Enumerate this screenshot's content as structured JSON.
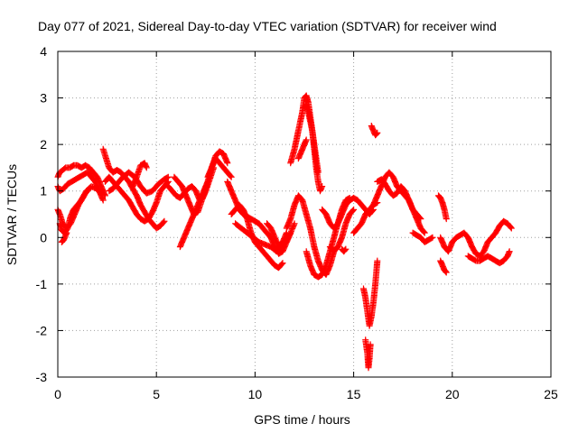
{
  "chart_data": {
    "type": "scatter",
    "title": "Day 077 of 2021, Sidereal Day-to-day VTEC variation (SDTVAR) for receiver wind",
    "xlabel": "GPS time / hours",
    "ylabel": "SDTVAR / TECUs",
    "xlim": [
      0,
      25
    ],
    "ylim": [
      -3,
      4
    ],
    "xticks": [
      0,
      5,
      10,
      15,
      20,
      25
    ],
    "yticks": [
      -3,
      -2,
      -1,
      0,
      1,
      2,
      3,
      4
    ],
    "grid": true,
    "marker": "+",
    "color": "#ff0000",
    "series": [
      {
        "name": "SDTVAR",
        "trace_segments": [
          {
            "x": [
              0.0,
              0.1,
              0.25,
              0.4,
              0.6,
              0.8,
              1.0,
              1.2,
              1.4,
              1.6,
              1.8,
              2.0,
              2.2,
              2.4
            ],
            "y": [
              1.3,
              1.4,
              1.45,
              1.5,
              1.5,
              1.55,
              1.55,
              1.5,
              1.55,
              1.5,
              1.4,
              1.3,
              1.1,
              0.9
            ]
          },
          {
            "x": [
              0.0,
              0.1,
              0.3,
              0.5,
              0.7,
              0.9,
              1.1,
              1.3,
              1.5,
              1.7,
              1.9,
              2.1,
              2.3
            ],
            "y": [
              1.1,
              1.0,
              1.05,
              1.15,
              1.2,
              1.25,
              1.3,
              1.35,
              1.4,
              1.3,
              1.2,
              1.0,
              0.8
            ]
          },
          {
            "x": [
              0.0,
              0.1,
              0.25,
              0.45,
              0.65,
              0.85,
              1.05,
              1.25,
              1.45,
              1.7,
              1.95,
              2.2
            ],
            "y": [
              0.6,
              0.5,
              0.3,
              0.2,
              0.3,
              0.5,
              0.7,
              0.85,
              1.0,
              1.1,
              1.05,
              0.95
            ]
          },
          {
            "x": [
              0.1,
              0.2,
              0.35,
              0.5,
              0.65,
              0.8,
              1.0,
              1.2,
              1.4,
              1.6
            ],
            "y": [
              0.3,
              0.15,
              0.1,
              0.2,
              0.45,
              0.6,
              0.7,
              0.8,
              0.95,
              1.05
            ]
          },
          {
            "x": [
              0.2,
              0.3,
              0.4,
              0.45
            ],
            "y": [
              -0.1,
              -0.05,
              0.05,
              0.1
            ]
          },
          {
            "x": [
              2.3,
              2.45,
              2.6,
              2.8,
              3.0,
              3.2,
              3.4,
              3.6,
              3.8,
              4.0,
              4.2,
              4.4,
              4.6,
              4.8,
              5.0,
              5.2,
              5.4
            ],
            "y": [
              1.9,
              1.7,
              1.5,
              1.4,
              1.45,
              1.4,
              1.3,
              1.2,
              1.05,
              0.9,
              0.7,
              0.55,
              0.4,
              0.3,
              0.2,
              0.25,
              0.35
            ]
          },
          {
            "x": [
              2.4,
              2.6,
              2.8,
              3.0,
              3.2,
              3.4,
              3.6,
              3.8,
              4.0,
              4.2,
              4.4,
              4.6,
              4.8,
              5.0,
              5.2,
              5.4,
              5.6
            ],
            "y": [
              1.2,
              1.3,
              1.2,
              1.1,
              1.0,
              0.9,
              0.8,
              0.65,
              0.5,
              0.4,
              0.35,
              0.4,
              0.55,
              0.75,
              1.0,
              1.1,
              1.2
            ]
          },
          {
            "x": [
              2.6,
              2.8,
              3.0,
              3.3,
              3.6,
              3.9,
              4.2,
              4.5,
              4.8,
              5.1,
              5.4,
              5.6
            ],
            "y": [
              1.0,
              1.05,
              1.15,
              1.3,
              1.4,
              1.3,
              1.1,
              0.95,
              1.0,
              1.15,
              1.25,
              1.3
            ]
          },
          {
            "x": [
              3.8,
              4.0,
              4.2,
              4.4,
              4.5
            ],
            "y": [
              1.1,
              1.3,
              1.55,
              1.6,
              1.5
            ]
          },
          {
            "x": [
              5.6,
              5.8,
              6.0,
              6.2,
              6.4,
              6.6,
              6.8,
              7.0,
              7.2,
              7.4,
              7.6,
              7.8,
              8.0,
              8.2,
              8.4,
              8.6
            ],
            "y": [
              1.1,
              1.0,
              0.9,
              0.85,
              0.95,
              1.05,
              1.1,
              1.0,
              0.8,
              0.9,
              1.2,
              1.5,
              1.75,
              1.85,
              1.8,
              1.6
            ]
          },
          {
            "x": [
              5.9,
              6.1,
              6.3,
              6.5,
              6.7,
              6.9,
              7.1,
              7.3,
              7.5,
              7.7,
              7.9
            ],
            "y": [
              1.3,
              1.2,
              1.1,
              0.9,
              0.7,
              0.5,
              0.55,
              0.8,
              1.0,
              1.25,
              1.5
            ]
          },
          {
            "x": [
              6.2,
              6.3,
              6.4,
              6.5,
              6.6,
              6.8,
              7.0,
              7.2,
              7.4,
              7.6
            ],
            "y": [
              -0.2,
              -0.1,
              0.0,
              0.1,
              0.2,
              0.4,
              0.6,
              0.8,
              1.0,
              1.2
            ]
          },
          {
            "x": [
              7.6,
              7.8,
              8.0,
              8.2,
              8.4,
              8.6,
              8.8
            ],
            "y": [
              1.3,
              1.5,
              1.7,
              1.6,
              1.5,
              1.4,
              1.3
            ]
          },
          {
            "x": [
              8.6,
              8.8,
              9.0,
              9.2,
              9.4,
              9.6,
              9.8,
              10.0,
              10.2,
              10.4,
              10.6,
              10.8,
              11.0,
              11.2,
              11.4,
              11.6,
              11.8
            ],
            "y": [
              1.2,
              1.0,
              0.8,
              0.6,
              0.5,
              0.45,
              0.4,
              0.35,
              0.3,
              0.2,
              0.1,
              0.0,
              -0.2,
              -0.35,
              -0.3,
              -0.1,
              0.1
            ]
          },
          {
            "x": [
              8.8,
              9.0,
              9.2,
              9.4,
              9.6,
              9.8,
              10.0,
              10.2,
              10.4,
              10.6,
              10.8,
              11.0,
              11.2,
              11.4
            ],
            "y": [
              0.5,
              0.6,
              0.7,
              0.6,
              0.4,
              0.1,
              -0.1,
              -0.2,
              -0.3,
              -0.4,
              -0.5,
              -0.6,
              -0.65,
              -0.55
            ]
          },
          {
            "x": [
              9.0,
              9.3,
              9.6,
              9.9,
              10.2,
              10.5,
              10.8,
              11.1,
              11.4,
              11.7,
              12.0
            ],
            "y": [
              0.3,
              0.2,
              0.1,
              0.0,
              -0.1,
              -0.15,
              -0.2,
              -0.3,
              -0.2,
              0.0,
              0.3
            ]
          },
          {
            "x": [
              10.6,
              10.8,
              11.0,
              11.2,
              11.4,
              11.6
            ],
            "y": [
              0.3,
              0.2,
              0.0,
              -0.2,
              -0.1,
              0.1
            ]
          },
          {
            "x": [
              11.8,
              12.0,
              12.2,
              12.4,
              12.5,
              12.6,
              12.7,
              12.8,
              12.9,
              13.0,
              13.1,
              13.2,
              13.3,
              13.4
            ],
            "y": [
              1.6,
              1.9,
              2.3,
              2.7,
              3.0,
              3.05,
              2.9,
              2.6,
              2.3,
              1.9,
              1.5,
              1.2,
              1.0,
              1.1
            ]
          },
          {
            "x": [
              12.5,
              12.6,
              12.7,
              12.8,
              12.9,
              13.0,
              13.1,
              13.2
            ],
            "y": [
              2.8,
              2.85,
              2.7,
              2.5,
              2.3,
              2.0,
              1.7,
              1.4
            ]
          },
          {
            "x": [
              12.2,
              12.3,
              12.4,
              12.5,
              12.6
            ],
            "y": [
              1.7,
              1.8,
              1.9,
              2.0,
              2.1
            ]
          },
          {
            "x": [
              11.6,
              11.8,
              12.0,
              12.2,
              12.4,
              12.6,
              12.8,
              13.0,
              13.2,
              13.4,
              13.6,
              13.8,
              14.0
            ],
            "y": [
              0.2,
              0.4,
              0.7,
              0.9,
              0.8,
              0.5,
              0.2,
              -0.2,
              -0.5,
              -0.7,
              -0.8,
              -0.6,
              -0.3
            ]
          },
          {
            "x": [
              12.6,
              12.8,
              13.0,
              13.2,
              13.4,
              13.6,
              13.8,
              14.0,
              14.2,
              14.4,
              14.6,
              14.8
            ],
            "y": [
              -0.3,
              -0.6,
              -0.8,
              -0.85,
              -0.8,
              -0.6,
              -0.3,
              0.0,
              0.3,
              0.6,
              0.8,
              0.85
            ]
          },
          {
            "x": [
              13.4,
              13.6,
              13.8,
              14.0,
              14.2,
              14.4,
              14.6,
              14.8,
              15.0,
              15.2,
              15.4,
              15.6,
              15.8,
              16.0
            ],
            "y": [
              0.6,
              0.5,
              0.3,
              0.2,
              0.3,
              0.5,
              0.7,
              0.8,
              0.85,
              0.8,
              0.7,
              0.6,
              0.5,
              0.6
            ]
          },
          {
            "x": [
              13.8,
              14.0,
              14.2,
              14.4,
              14.6,
              14.8,
              15.0
            ],
            "y": [
              -0.2,
              -0.3,
              -0.2,
              0.0,
              0.3,
              0.5,
              0.6
            ]
          },
          {
            "x": [
              14.4,
              14.5,
              14.6
            ],
            "y": [
              -0.25,
              -0.3,
              -0.25
            ]
          },
          {
            "x": [
              15.0,
              15.2,
              15.4,
              15.6,
              15.8,
              16.0,
              16.2
            ],
            "y": [
              0.1,
              0.2,
              0.3,
              0.5,
              0.6,
              0.7,
              0.75
            ]
          },
          {
            "x": [
              15.5,
              15.6,
              15.7,
              15.8,
              15.9,
              16.0,
              16.1,
              16.2
            ],
            "y": [
              -1.1,
              -1.3,
              -1.6,
              -1.9,
              -1.7,
              -1.4,
              -1.0,
              -0.5
            ]
          },
          {
            "x": [
              15.6,
              15.7,
              15.75,
              15.8,
              15.85
            ],
            "y": [
              -2.2,
              -2.5,
              -2.8,
              -2.6,
              -2.3
            ]
          },
          {
            "x": [
              15.9,
              16.0,
              16.1,
              16.2
            ],
            "y": [
              2.4,
              2.3,
              2.2,
              2.25
            ]
          },
          {
            "x": [
              16.0,
              16.2,
              16.4,
              16.6,
              16.8,
              17.0,
              17.2,
              17.4,
              17.6,
              17.8,
              18.0,
              18.2,
              18.4,
              18.6
            ],
            "y": [
              0.7,
              0.9,
              1.1,
              1.3,
              1.4,
              1.3,
              1.1,
              1.0,
              0.9,
              0.8,
              0.6,
              0.4,
              0.2,
              0.1
            ]
          },
          {
            "x": [
              16.2,
              16.4,
              16.6,
              16.8,
              17.0,
              17.2,
              17.4,
              17.6,
              17.8,
              18.0,
              18.2,
              18.4
            ],
            "y": [
              1.2,
              1.25,
              1.15,
              1.0,
              0.9,
              0.95,
              1.1,
              1.0,
              0.8,
              0.6,
              0.5,
              0.4
            ]
          },
          {
            "x": [
              18.0,
              18.2,
              18.4,
              18.6,
              18.8,
              19.0
            ],
            "y": [
              0.1,
              0.05,
              0.0,
              -0.1,
              -0.05,
              0.0
            ]
          },
          {
            "x": [
              19.3,
              19.4,
              19.5,
              19.6,
              19.7
            ],
            "y": [
              0.9,
              0.85,
              0.75,
              0.6,
              0.4
            ]
          },
          {
            "x": [
              19.4,
              19.6,
              19.8,
              20.0,
              20.2,
              20.4,
              20.6,
              20.8,
              21.0,
              21.2,
              21.4,
              21.6,
              21.8,
              22.0,
              22.2,
              22.4,
              22.6,
              22.8,
              23.0
            ],
            "y": [
              0.0,
              -0.2,
              -0.3,
              -0.1,
              0.0,
              0.05,
              0.1,
              0.0,
              -0.2,
              -0.35,
              -0.4,
              -0.3,
              -0.1,
              0.0,
              0.1,
              0.25,
              0.35,
              0.3,
              0.2
            ]
          },
          {
            "x": [
              19.4,
              19.5,
              19.6,
              19.7
            ],
            "y": [
              -0.5,
              -0.6,
              -0.7,
              -0.75
            ]
          },
          {
            "x": [
              20.8,
              21.0,
              21.2,
              21.4,
              21.6,
              21.8,
              22.0,
              22.2,
              22.4,
              22.6,
              22.8,
              22.9
            ],
            "y": [
              -0.4,
              -0.45,
              -0.5,
              -0.5,
              -0.45,
              -0.4,
              -0.45,
              -0.5,
              -0.55,
              -0.5,
              -0.4,
              -0.3
            ]
          }
        ]
      }
    ]
  }
}
